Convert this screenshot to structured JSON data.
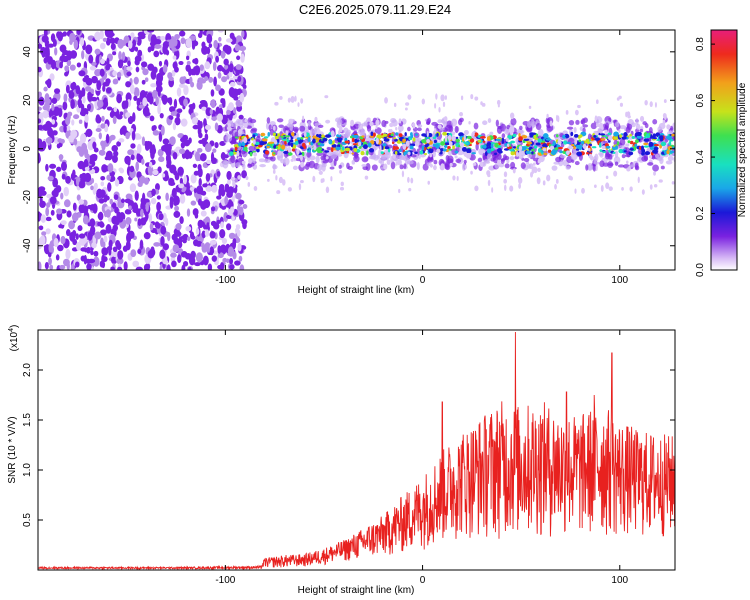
{
  "title": "C2E6.2025.079.11.29.E24",
  "colors": {
    "snr_line": "#e8211f",
    "noise_purple": "#7a22e0",
    "colormap": [
      "#ffffff",
      "#d6b8f5",
      "#7a22e0",
      "#1b18d8",
      "#1aa7e8",
      "#19e0c0",
      "#3ee050",
      "#c7e21b",
      "#f2a01b",
      "#ee2a1d",
      "#e81e7a"
    ]
  },
  "chart_data": [
    {
      "type": "heatmap",
      "xlabel": "Height of straight line (km)",
      "ylabel": "Frequency (Hz)",
      "xlim": [
        -195,
        128
      ],
      "ylim": [
        -50,
        49
      ],
      "xticks": [
        -100,
        0,
        100
      ],
      "xtick_labels": [
        "-100",
        "0",
        "100"
      ],
      "yticks": [
        -40,
        -20,
        0,
        20,
        40
      ],
      "ytick_labels": [
        "-40",
        "-20",
        "0",
        "20",
        "40"
      ],
      "grid": false,
      "description_regions": {
        "noise_x_range": [
          -195,
          -90
        ],
        "signal_band_x_range": [
          -100,
          128
        ],
        "signal_band_center_hz": 2,
        "signal_band_halfwidth_hz": 6
      },
      "colorbar": {
        "label": "Normalized spectral amplitude",
        "range": [
          0.0,
          0.85
        ],
        "ticks": [
          0.0,
          0.2,
          0.4,
          0.6,
          0.8
        ],
        "tick_labels": [
          "0.0",
          "0.2",
          "0.4",
          "0.6",
          "0.8"
        ]
      }
    },
    {
      "type": "line",
      "xlabel": "Height of straight line (km)",
      "ylabel": "SNR (10 * V/V)",
      "multiplier_label": "(x10",
      "multiplier_exponent": "4",
      "xlim": [
        -195,
        128
      ],
      "ylim": [
        0,
        2.4
      ],
      "xticks": [
        -100,
        0,
        100
      ],
      "xtick_labels": [
        "-100",
        "0",
        "100"
      ],
      "yticks": [
        0.5,
        1.0,
        1.5,
        2.0
      ],
      "ytick_labels": [
        "0.5",
        "1.0",
        "1.5",
        "2.0"
      ],
      "grid": false,
      "envelope": {
        "x": [
          -195,
          -120,
          -82,
          -80,
          -70,
          -60,
          -50,
          -40,
          -30,
          -20,
          -10,
          0,
          10,
          20,
          30,
          40,
          50,
          60,
          70,
          80,
          90,
          100,
          110,
          128
        ],
        "upper": [
          0.03,
          0.03,
          0.04,
          0.12,
          0.15,
          0.16,
          0.22,
          0.3,
          0.42,
          0.55,
          0.75,
          0.95,
          1.2,
          1.4,
          1.55,
          1.7,
          1.65,
          1.7,
          1.6,
          1.55,
          1.7,
          1.5,
          1.4,
          1.35
        ],
        "lower": [
          0.01,
          0.01,
          0.01,
          0.02,
          0.02,
          0.03,
          0.05,
          0.08,
          0.1,
          0.12,
          0.15,
          0.2,
          0.25,
          0.3,
          0.3,
          0.3,
          0.3,
          0.3,
          0.3,
          0.3,
          0.3,
          0.3,
          0.3,
          0.3
        ]
      },
      "peaks": [
        {
          "x": 47,
          "y": 2.38
        },
        {
          "x": 96,
          "y": 2.17
        },
        {
          "x": 10,
          "y": 1.68
        },
        {
          "x": 73,
          "y": 1.78
        },
        {
          "x": 87,
          "y": 1.75
        }
      ]
    }
  ]
}
